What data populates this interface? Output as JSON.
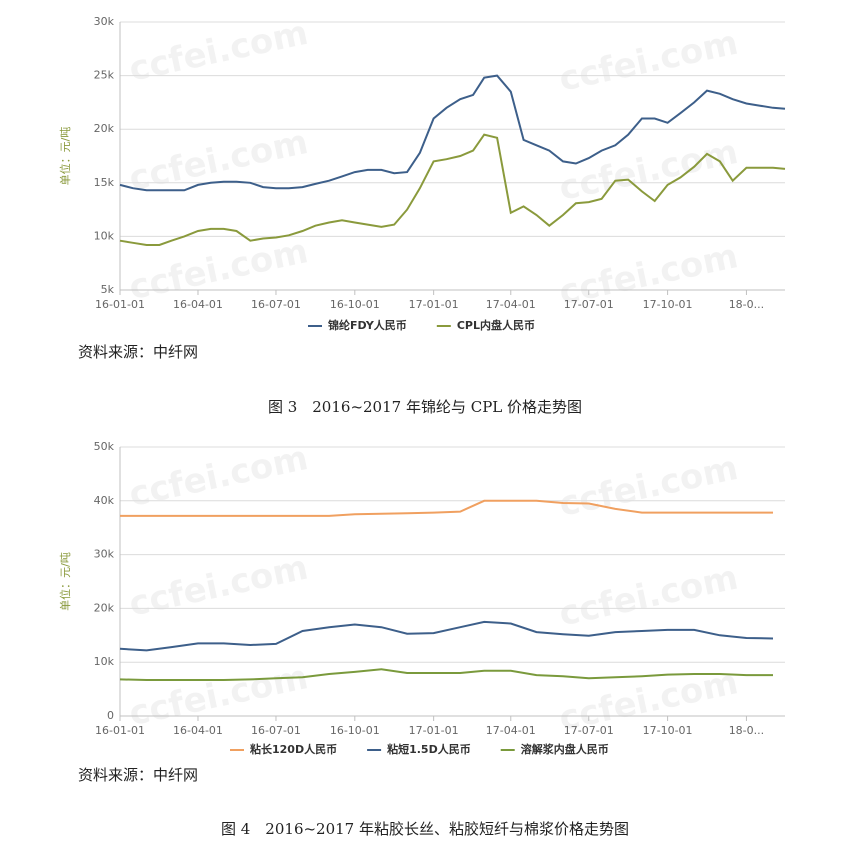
{
  "chart_data": [
    {
      "type": "line",
      "y_label": "单位：元/吨",
      "watermark": "ccfei.com",
      "source": "资料来源：中纤网",
      "caption": "图 3　2016~2017 年锦纶与 CPL 价格走势图",
      "x": [
        "16-01-01",
        "16-01-16",
        "16-02-01",
        "16-02-16",
        "16-03-01",
        "16-03-16",
        "16-04-01",
        "16-04-16",
        "16-05-01",
        "16-05-16",
        "16-06-01",
        "16-06-16",
        "16-07-01",
        "16-07-16",
        "16-08-01",
        "16-08-16",
        "16-09-01",
        "16-09-16",
        "16-10-01",
        "16-10-16",
        "16-11-01",
        "16-11-16",
        "16-12-01",
        "16-12-16",
        "17-01-01",
        "17-01-16",
        "17-02-01",
        "17-02-16",
        "17-03-01",
        "17-03-16",
        "17-04-01",
        "17-04-16",
        "17-05-01",
        "17-05-16",
        "17-06-01",
        "17-06-16",
        "17-07-01",
        "17-07-16",
        "17-08-01",
        "17-08-16",
        "17-09-01",
        "17-09-16",
        "17-10-01",
        "17-10-16",
        "17-11-01",
        "17-11-16",
        "17-12-01",
        "17-12-16",
        "18-01-01",
        "18-01-16",
        "18-02-01",
        "18-02-15"
      ],
      "series": [
        {
          "name": "锦纶FDY人民币",
          "color": "#3d5f8a",
          "values": [
            14800,
            14500,
            14300,
            14300,
            14300,
            14300,
            14800,
            15000,
            15100,
            15100,
            15000,
            14600,
            14500,
            14500,
            14600,
            14900,
            15200,
            15600,
            16000,
            16200,
            16200,
            15900,
            16000,
            17800,
            21000,
            22000,
            22800,
            23200,
            24800,
            25000,
            23500,
            19000,
            18500,
            18000,
            17000,
            16800,
            17300,
            18000,
            18500,
            19500,
            21000,
            21000,
            20600,
            21500,
            22500,
            23600,
            23300,
            22800,
            22400,
            22200,
            22000,
            21900
          ]
        },
        {
          "name": "CPL内盘人民币",
          "color": "#8a9a3c",
          "values": [
            9600,
            9400,
            9200,
            9200,
            9600,
            10000,
            10500,
            10700,
            10700,
            10500,
            9600,
            9800,
            9900,
            10100,
            10500,
            11000,
            11300,
            11500,
            11300,
            11100,
            10900,
            11100,
            12500,
            14500,
            17000,
            17200,
            17500,
            18000,
            19500,
            19200,
            12200,
            12800,
            12000,
            11000,
            12000,
            13100,
            13200,
            13500,
            15200,
            15300,
            14200,
            13300,
            14800,
            15500,
            16500,
            17700,
            17000,
            15200,
            16400,
            16400,
            16400,
            16300
          ]
        }
      ],
      "xlim": [
        "16-01-01",
        "18-02-15"
      ],
      "xticks": [
        "16-01-01",
        "16-04-01",
        "16-07-01",
        "16-10-01",
        "17-01-01",
        "17-04-01",
        "17-07-01",
        "17-10-01",
        {
          "value": "18-01-01",
          "label": "18-0..."
        }
      ],
      "ylim": [
        5000,
        30000
      ],
      "yticks": [
        {
          "value": 5000,
          "label": "5k"
        },
        {
          "value": 10000,
          "label": "10k"
        },
        {
          "value": 15000,
          "label": "15k"
        },
        {
          "value": 20000,
          "label": "20k"
        },
        {
          "value": 25000,
          "label": "25k"
        },
        {
          "value": 30000,
          "label": "30k"
        }
      ],
      "grid": true
    },
    {
      "type": "line",
      "y_label": "单位：元/吨",
      "watermark": "ccfei.com",
      "source": "资料来源：中纤网",
      "caption": "图 4　2016~2017 年粘胶长丝、粘胶短纤与棉浆价格走势图",
      "x": [
        "16-01-01",
        "16-02-01",
        "16-03-01",
        "16-04-01",
        "16-05-01",
        "16-06-01",
        "16-07-01",
        "16-08-01",
        "16-09-01",
        "16-10-01",
        "16-11-01",
        "16-12-01",
        "17-01-01",
        "17-02-01",
        "17-03-01",
        "17-04-01",
        "17-05-01",
        "17-06-01",
        "17-07-01",
        "17-08-01",
        "17-09-01",
        "17-10-01",
        "17-11-01",
        "17-12-01",
        "18-01-01",
        "18-02-01"
      ],
      "series": [
        {
          "name": "粘长120D人民币",
          "color": "#f0a060",
          "values": [
            37200,
            37200,
            37200,
            37200,
            37200,
            37200,
            37200,
            37200,
            37200,
            37500,
            37600,
            37700,
            37800,
            38000,
            40000,
            40000,
            40000,
            39600,
            39500,
            38500,
            37800,
            37800,
            37800,
            37800,
            37800,
            37800
          ]
        },
        {
          "name": "粘短1.5D人民币",
          "color": "#3d5f8a",
          "values": [
            12500,
            12200,
            12800,
            13500,
            13500,
            13200,
            13400,
            15800,
            16500,
            17000,
            16500,
            15300,
            15400,
            16500,
            17500,
            17200,
            15600,
            15200,
            14900,
            15600,
            15800,
            16000,
            16000,
            15000,
            14500,
            14400
          ]
        },
        {
          "name": "溶解浆内盘人民币",
          "color": "#7a9a3c",
          "values": [
            6800,
            6700,
            6700,
            6700,
            6700,
            6800,
            7000,
            7200,
            7800,
            8200,
            8700,
            8000,
            8000,
            8000,
            8400,
            8400,
            7600,
            7400,
            7000,
            7200,
            7400,
            7700,
            7800,
            7800,
            7600,
            7600
          ]
        }
      ],
      "xlim": [
        "16-01-01",
        "18-02-15"
      ],
      "xticks": [
        "16-01-01",
        "16-04-01",
        "16-07-01",
        "16-10-01",
        "17-01-01",
        "17-04-01",
        "17-07-01",
        "17-10-01",
        {
          "value": "18-01-01",
          "label": "18-0..."
        }
      ],
      "ylim": [
        0,
        50000
      ],
      "yticks": [
        0,
        {
          "value": 10000,
          "label": "10k"
        },
        {
          "value": 20000,
          "label": "20k"
        },
        {
          "value": 30000,
          "label": "30k"
        },
        {
          "value": 40000,
          "label": "40k"
        },
        {
          "value": 50000,
          "label": "50k"
        }
      ],
      "grid": true
    }
  ]
}
